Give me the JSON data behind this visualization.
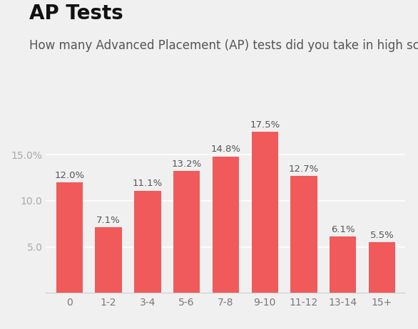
{
  "title": "AP Tests",
  "subtitle": "How many Advanced Placement (AP) tests did you take in high school?",
  "categories": [
    "0",
    "1-2",
    "3-4",
    "5-6",
    "7-8",
    "9-10",
    "11-12",
    "13-14",
    "15+"
  ],
  "values": [
    12.0,
    7.1,
    11.1,
    13.2,
    14.8,
    17.5,
    12.7,
    6.1,
    5.5
  ],
  "bar_color": "#f05a5a",
  "background_color": "#f0f0f0",
  "ylim": [
    0,
    20
  ],
  "yticks": [
    5.0,
    10.0,
    15.0
  ],
  "ytick_labels": [
    "5.0",
    "10.0",
    "15.0%"
  ],
  "grid_color": "#ffffff",
  "title_fontsize": 20,
  "subtitle_fontsize": 12,
  "tick_fontsize": 10,
  "bar_label_fontsize": 9.5,
  "bar_label_color": "#555555",
  "tick_color": "#aaaaaa",
  "xtick_color": "#777777"
}
